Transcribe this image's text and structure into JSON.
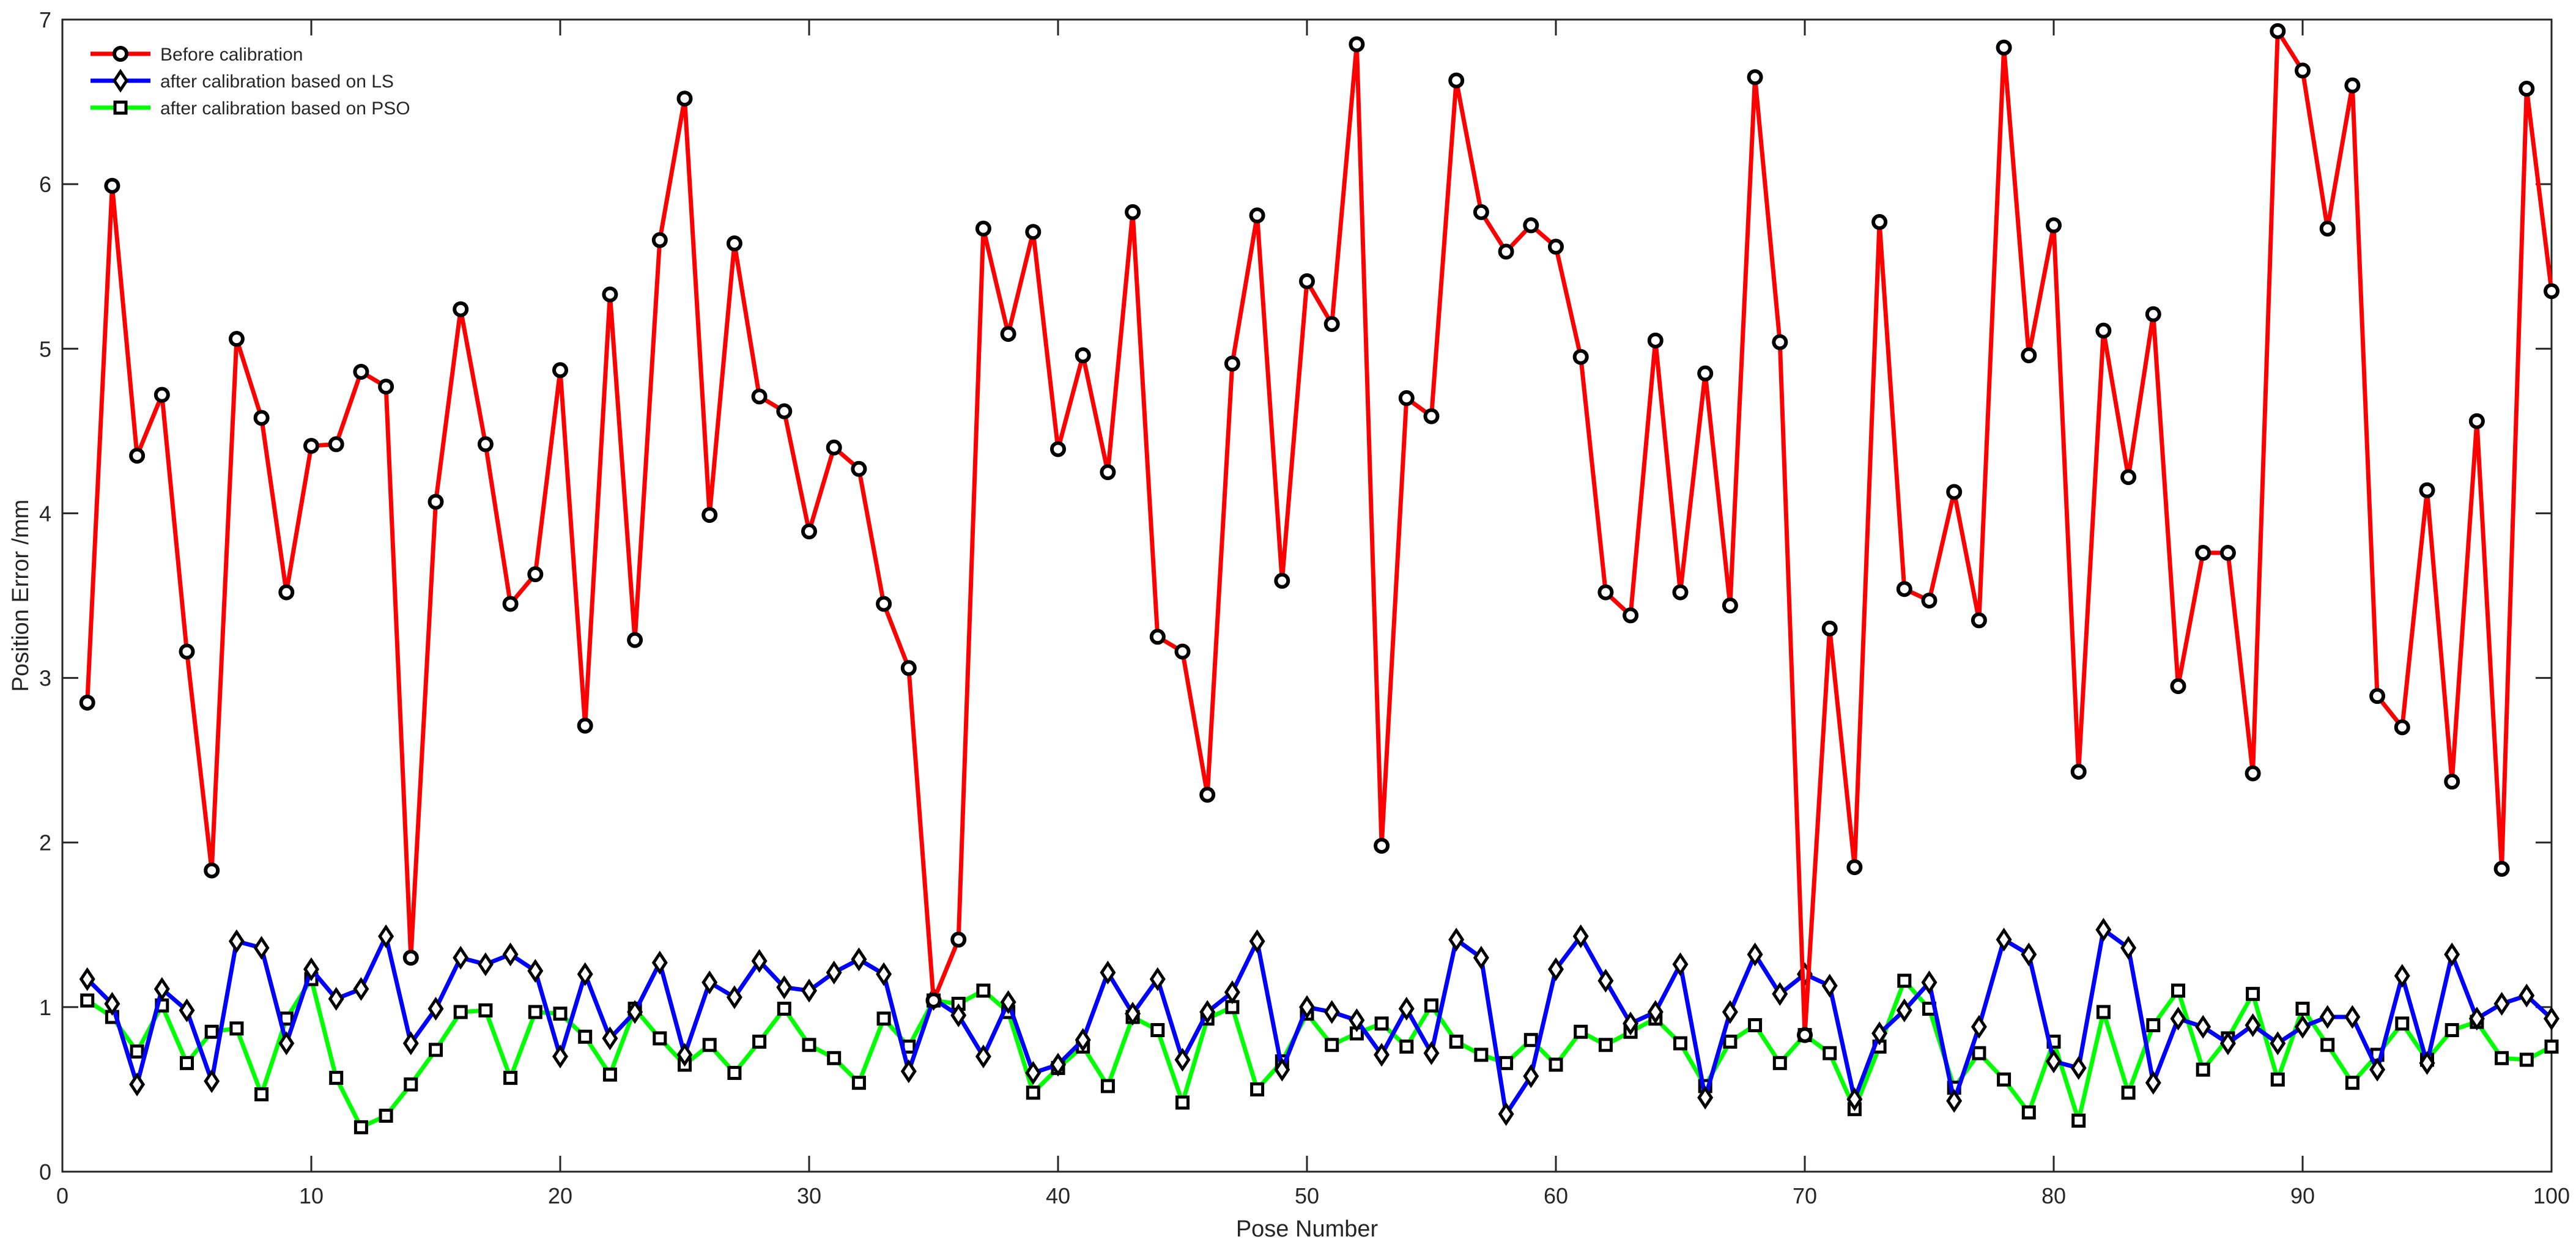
{
  "chart_data": {
    "type": "line",
    "title": "",
    "xlabel": "Pose Number",
    "ylabel": "Position Error /mm",
    "xlim": [
      0,
      100
    ],
    "ylim": [
      0,
      7
    ],
    "xticks": [
      0,
      10,
      20,
      30,
      40,
      50,
      60,
      70,
      80,
      90,
      100
    ],
    "yticks": [
      0,
      1,
      2,
      3,
      4,
      5,
      6,
      7
    ],
    "grid": false,
    "legend_position": "top-left",
    "series": [
      {
        "name": "Before calibration",
        "color": "#ff0000",
        "marker": "circle",
        "x": [
          1,
          2,
          3,
          4,
          5,
          6,
          7,
          8,
          9,
          10,
          11,
          12,
          13,
          14,
          15,
          16,
          17,
          18,
          19,
          20,
          21,
          22,
          23,
          24,
          25,
          26,
          27,
          28,
          29,
          30,
          31,
          32,
          33,
          34,
          35,
          36,
          37,
          38,
          39,
          40,
          41,
          42,
          43,
          44,
          45,
          46,
          47,
          48,
          49,
          50,
          51,
          52,
          53,
          54,
          55,
          56,
          57,
          58,
          59,
          60,
          61,
          62,
          63,
          64,
          65,
          66,
          67,
          68,
          69,
          70,
          71,
          72,
          73,
          74,
          75,
          76,
          77,
          78,
          79,
          80,
          81,
          82,
          83,
          84,
          85,
          86,
          87,
          88,
          89,
          90,
          91,
          92,
          93,
          94,
          95,
          96,
          97,
          98,
          99,
          100
        ],
        "values": [
          2.85,
          5.99,
          4.35,
          4.72,
          3.16,
          1.83,
          5.06,
          4.58,
          3.52,
          4.41,
          4.42,
          4.86,
          4.77,
          1.3,
          4.07,
          5.24,
          4.42,
          3.45,
          3.63,
          4.87,
          2.71,
          5.33,
          3.23,
          5.66,
          6.52,
          3.99,
          5.64,
          4.71,
          4.62,
          3.89,
          4.4,
          4.27,
          3.45,
          3.06,
          1.04,
          1.41,
          5.73,
          5.09,
          5.71,
          4.39,
          4.96,
          4.25,
          5.83,
          3.25,
          3.16,
          2.29,
          4.91,
          5.81,
          3.59,
          5.41,
          5.15,
          6.85,
          1.98,
          4.7,
          4.59,
          6.63,
          5.83,
          5.59,
          5.75,
          5.62,
          4.95,
          3.52,
          3.38,
          5.05,
          3.52,
          4.85,
          3.44,
          6.65,
          5.04,
          0.83,
          3.3,
          1.85,
          5.77,
          3.54,
          3.47,
          4.13,
          3.35,
          6.83,
          4.96,
          5.75,
          2.43,
          5.11,
          4.22,
          5.21,
          2.95,
          3.76,
          3.76,
          2.42,
          6.93,
          6.69,
          5.73,
          6.6,
          2.89,
          2.7,
          4.14,
          2.37,
          4.56,
          1.84,
          6.58,
          5.35
        ]
      },
      {
        "name": "after calibration based on LS",
        "color": "#0000ff",
        "marker": "diamond",
        "x": [
          1,
          2,
          3,
          4,
          5,
          6,
          7,
          8,
          9,
          10,
          11,
          12,
          13,
          14,
          15,
          16,
          17,
          18,
          19,
          20,
          21,
          22,
          23,
          24,
          25,
          26,
          27,
          28,
          29,
          30,
          31,
          32,
          33,
          34,
          35,
          36,
          37,
          38,
          39,
          40,
          41,
          42,
          43,
          44,
          45,
          46,
          47,
          48,
          49,
          50,
          51,
          52,
          53,
          54,
          55,
          56,
          57,
          58,
          59,
          60,
          61,
          62,
          63,
          64,
          65,
          66,
          67,
          68,
          69,
          70,
          71,
          72,
          73,
          74,
          75,
          76,
          77,
          78,
          79,
          80,
          81,
          82,
          83,
          84,
          85,
          86,
          87,
          88,
          89,
          90,
          91,
          92,
          93,
          94,
          95,
          96,
          97,
          98,
          99,
          100
        ],
        "values": [
          1.17,
          1.02,
          0.53,
          1.11,
          0.98,
          0.55,
          1.4,
          1.36,
          0.78,
          1.23,
          1.05,
          1.11,
          1.43,
          0.78,
          0.99,
          1.3,
          1.26,
          1.32,
          1.22,
          0.7,
          1.2,
          0.81,
          0.97,
          1.27,
          0.71,
          1.15,
          1.06,
          1.28,
          1.12,
          1.1,
          1.21,
          1.29,
          1.2,
          0.61,
          1.05,
          0.95,
          0.7,
          1.03,
          0.6,
          0.65,
          0.8,
          1.21,
          0.96,
          1.17,
          0.68,
          0.97,
          1.09,
          1.4,
          0.62,
          1.0,
          0.97,
          0.92,
          0.71,
          0.99,
          0.72,
          1.41,
          1.3,
          0.35,
          0.58,
          1.23,
          1.43,
          1.16,
          0.9,
          0.97,
          1.26,
          0.45,
          0.97,
          1.32,
          1.08,
          1.2,
          1.13,
          0.44,
          0.84,
          0.98,
          1.15,
          0.43,
          0.88,
          1.41,
          1.32,
          0.67,
          0.63,
          1.47,
          1.36,
          0.54,
          0.93,
          0.88,
          0.78,
          0.89,
          0.78,
          0.88,
          0.94,
          0.94,
          0.62,
          1.19,
          0.66,
          1.32,
          0.93,
          1.02,
          1.07,
          0.93
        ]
      },
      {
        "name": "after calibration based on PSO",
        "color": "#00ff00",
        "marker": "square",
        "x": [
          1,
          2,
          3,
          4,
          5,
          6,
          7,
          8,
          9,
          10,
          11,
          12,
          13,
          14,
          15,
          16,
          17,
          18,
          19,
          20,
          21,
          22,
          23,
          24,
          25,
          26,
          27,
          28,
          29,
          30,
          31,
          32,
          33,
          34,
          35,
          36,
          37,
          38,
          39,
          40,
          41,
          42,
          43,
          44,
          45,
          46,
          47,
          48,
          49,
          50,
          51,
          52,
          53,
          54,
          55,
          56,
          57,
          58,
          59,
          60,
          61,
          62,
          63,
          64,
          65,
          66,
          67,
          68,
          69,
          70,
          71,
          72,
          73,
          74,
          75,
          76,
          77,
          78,
          79,
          80,
          81,
          82,
          83,
          84,
          85,
          86,
          87,
          88,
          89,
          90,
          91,
          92,
          93,
          94,
          95,
          96,
          97,
          98,
          99,
          100
        ],
        "values": [
          1.04,
          0.94,
          0.73,
          1.01,
          0.66,
          0.85,
          0.87,
          0.47,
          0.93,
          1.17,
          0.57,
          0.27,
          0.34,
          0.53,
          0.74,
          0.97,
          0.98,
          0.57,
          0.97,
          0.96,
          0.82,
          0.59,
          0.99,
          0.81,
          0.65,
          0.77,
          0.6,
          0.79,
          0.99,
          0.77,
          0.69,
          0.54,
          0.93,
          0.76,
          1.04,
          1.02,
          1.1,
          0.97,
          0.48,
          0.63,
          0.76,
          0.52,
          0.94,
          0.86,
          0.42,
          0.93,
          1.0,
          0.5,
          0.67,
          0.96,
          0.77,
          0.84,
          0.9,
          0.76,
          1.01,
          0.79,
          0.71,
          0.66,
          0.8,
          0.65,
          0.85,
          0.77,
          0.85,
          0.93,
          0.78,
          0.52,
          0.79,
          0.89,
          0.66,
          0.83,
          0.72,
          0.38,
          0.76,
          1.16,
          0.99,
          0.51,
          0.72,
          0.56,
          0.36,
          0.79,
          0.31,
          0.97,
          0.48,
          0.89,
          1.1,
          0.62,
          0.81,
          1.08,
          0.56,
          0.99,
          0.77,
          0.54,
          0.71,
          0.9,
          0.68,
          0.86,
          0.91,
          0.69,
          0.68,
          0.76
        ]
      }
    ]
  }
}
